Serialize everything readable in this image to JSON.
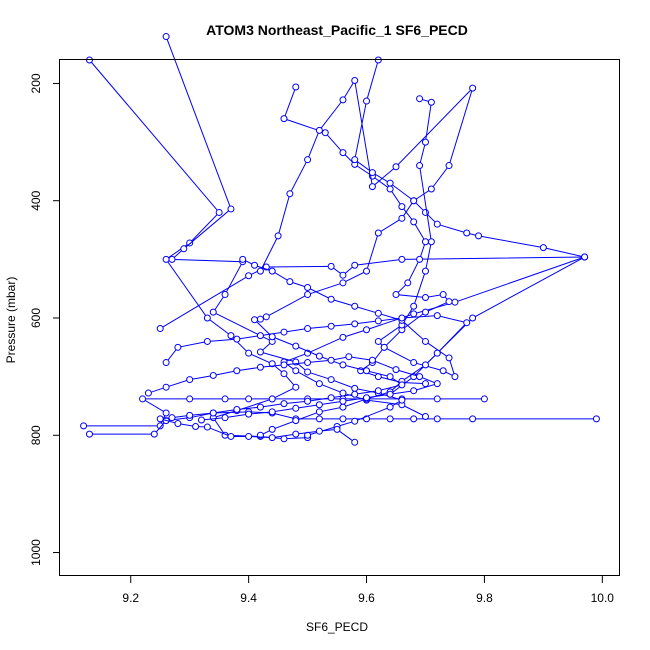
{
  "chart_data": {
    "type": "line",
    "title": "ATOM3 Northeast_Pacific_1 SF6_PECD",
    "xlabel": "SF6_PECD",
    "ylabel": "Pressure (mbar)",
    "xlim": [
      9.08,
      10.03
    ],
    "ylim": [
      1040,
      160
    ],
    "y_reversed": true,
    "x_ticks": [
      9.2,
      9.4,
      9.6,
      9.8,
      10.0
    ],
    "x_tick_labels": [
      "9.2",
      "9.4",
      "9.6",
      "9.8",
      "10.0"
    ],
    "y_ticks": [
      200,
      400,
      600,
      800,
      1000
    ],
    "y_tick_labels": [
      "200",
      "400",
      "600",
      "800",
      "1000"
    ],
    "series_color": "#0000ff",
    "grid": false,
    "legend": "none",
    "marker": "open-circle",
    "series": [
      {
        "values": [
          [
            9.12,
            784
          ],
          [
            9.25,
            784
          ],
          [
            9.26,
            762
          ],
          [
            9.22,
            738
          ],
          [
            9.3,
            738
          ],
          [
            9.36,
            738
          ],
          [
            9.4,
            738
          ],
          [
            9.44,
            738
          ],
          [
            9.5,
            738
          ],
          [
            9.56,
            738
          ],
          [
            9.6,
            738
          ],
          [
            9.66,
            738
          ],
          [
            9.72,
            738
          ],
          [
            9.8,
            738
          ]
        ]
      },
      {
        "values": [
          [
            9.13,
            798
          ],
          [
            9.24,
            798
          ],
          [
            9.26,
            775
          ],
          [
            9.3,
            770
          ],
          [
            9.34,
            762
          ],
          [
            9.4,
            760
          ],
          [
            9.44,
            762
          ],
          [
            9.48,
            772
          ],
          [
            9.52,
            772
          ],
          [
            9.56,
            772
          ],
          [
            9.6,
            772
          ],
          [
            9.64,
            772
          ],
          [
            9.68,
            772
          ],
          [
            9.72,
            772
          ],
          [
            9.78,
            772
          ],
          [
            9.99,
            772
          ]
        ]
      },
      {
        "values": [
          [
            9.25,
            618
          ],
          [
            9.4,
            528
          ],
          [
            9.43,
            513
          ],
          [
            9.54,
            512
          ],
          [
            9.56,
            527
          ],
          [
            9.58,
            510
          ],
          [
            9.66,
            500
          ],
          [
            9.97,
            496
          ],
          [
            9.75,
            573
          ],
          [
            9.68,
            593
          ],
          [
            9.6,
            620
          ],
          [
            9.56,
            633
          ],
          [
            9.5,
            660
          ],
          [
            9.46,
            675
          ],
          [
            9.48,
            690
          ],
          [
            9.52,
            712
          ],
          [
            9.56,
            728
          ],
          [
            9.6,
            740
          ],
          [
            9.66,
            748
          ],
          [
            9.7,
            768
          ]
        ]
      },
      {
        "values": [
          [
            9.13,
            160
          ],
          [
            9.35,
            420
          ],
          [
            9.3,
            472
          ],
          [
            9.26,
            500
          ],
          [
            9.33,
            600
          ],
          [
            9.37,
            630
          ],
          [
            9.4,
            660
          ],
          [
            9.44,
            678
          ],
          [
            9.46,
            695
          ],
          [
            9.48,
            718
          ],
          [
            9.44,
            738
          ],
          [
            9.38,
            758
          ],
          [
            9.34,
            770
          ],
          [
            9.36,
            800
          ],
          [
            9.42,
            802
          ],
          [
            9.46,
            806
          ],
          [
            9.5,
            804
          ]
        ]
      },
      {
        "values": [
          [
            9.26,
            120
          ],
          [
            9.37,
            414
          ],
          [
            9.29,
            482
          ],
          [
            9.27,
            500
          ],
          [
            9.39,
            504
          ],
          [
            9.36,
            560
          ],
          [
            9.34,
            590
          ],
          [
            9.44,
            640
          ],
          [
            9.42,
            658
          ],
          [
            9.48,
            675
          ],
          [
            9.5,
            692
          ],
          [
            9.54,
            705
          ],
          [
            9.58,
            720
          ],
          [
            9.62,
            728
          ],
          [
            9.66,
            740
          ],
          [
            9.64,
            752
          ],
          [
            9.58,
            776
          ],
          [
            9.55,
            785
          ],
          [
            9.5,
            800
          ]
        ]
      },
      {
        "values": [
          [
            9.48,
            206
          ],
          [
            9.46,
            260
          ],
          [
            9.53,
            284
          ],
          [
            9.56,
            318
          ],
          [
            9.58,
            338
          ],
          [
            9.61,
            358
          ],
          [
            9.64,
            380
          ],
          [
            9.66,
            410
          ],
          [
            9.68,
            436
          ],
          [
            9.7,
            470
          ],
          [
            9.69,
            500
          ],
          [
            9.67,
            540
          ],
          [
            9.65,
            560
          ],
          [
            9.7,
            565
          ],
          [
            9.73,
            560
          ],
          [
            9.74,
            572
          ],
          [
            9.7,
            590
          ],
          [
            9.66,
            620
          ],
          [
            9.63,
            650
          ],
          [
            9.61,
            676
          ],
          [
            9.59,
            690
          ],
          [
            9.62,
            700
          ],
          [
            9.66,
            710
          ],
          [
            9.7,
            712
          ]
        ]
      },
      {
        "values": [
          [
            9.42,
            602
          ],
          [
            9.43,
            598
          ],
          [
            9.5,
            560
          ],
          [
            9.56,
            540
          ],
          [
            9.6,
            520
          ],
          [
            9.62,
            455
          ],
          [
            9.66,
            430
          ],
          [
            9.68,
            400
          ],
          [
            9.71,
            380
          ],
          [
            9.74,
            340
          ],
          [
            9.78,
            208
          ],
          [
            9.65,
            342
          ],
          [
            9.61,
            376
          ],
          [
            9.58,
            195
          ],
          [
            9.56,
            228
          ],
          [
            9.52,
            280
          ],
          [
            9.5,
            330
          ],
          [
            9.47,
            388
          ],
          [
            9.45,
            460
          ],
          [
            9.42,
            520
          ]
        ]
      },
      {
        "values": [
          [
            9.62,
            160
          ],
          [
            9.6,
            230
          ],
          [
            9.58,
            330
          ],
          [
            9.61,
            352
          ],
          [
            9.64,
            370
          ],
          [
            9.68,
            400
          ],
          [
            9.7,
            420
          ],
          [
            9.72,
            440
          ],
          [
            9.77,
            455
          ],
          [
            9.79,
            460
          ],
          [
            9.9,
            480
          ],
          [
            9.97,
            496
          ],
          [
            9.78,
            600
          ],
          [
            9.72,
            660
          ],
          [
            9.68,
            700
          ],
          [
            9.64,
            730
          ]
        ]
      },
      {
        "values": [
          [
            9.69,
            226
          ],
          [
            9.71,
            232
          ],
          [
            9.7,
            300
          ],
          [
            9.69,
            340
          ],
          [
            9.71,
            470
          ],
          [
            9.7,
            520
          ],
          [
            9.68,
            580
          ],
          [
            9.66,
            612
          ],
          [
            9.62,
            640
          ],
          [
            9.63,
            650
          ],
          [
            9.68,
            676
          ],
          [
            9.73,
            690
          ],
          [
            9.75,
            700
          ],
          [
            9.74,
            668
          ],
          [
            9.7,
            640
          ],
          [
            9.66,
            604
          ],
          [
            9.62,
            592
          ],
          [
            9.58,
            580
          ],
          [
            9.54,
            568
          ],
          [
            9.5,
            548
          ],
          [
            9.47,
            538
          ],
          [
            9.44,
            520
          ],
          [
            9.41,
            510
          ],
          [
            9.39,
            500
          ]
        ]
      },
      {
        "values": [
          [
            9.26,
            676
          ],
          [
            9.28,
            650
          ],
          [
            9.33,
            640
          ],
          [
            9.38,
            636
          ],
          [
            9.42,
            630
          ],
          [
            9.46,
            624
          ],
          [
            9.5,
            618
          ],
          [
            9.54,
            614
          ],
          [
            9.58,
            610
          ],
          [
            9.62,
            605
          ],
          [
            9.66,
            600
          ],
          [
            9.72,
            596
          ],
          [
            9.77,
            608
          ],
          [
            9.72,
            660
          ],
          [
            9.7,
            680
          ],
          [
            9.66,
            708
          ],
          [
            9.64,
            726
          ],
          [
            9.6,
            738
          ],
          [
            9.56,
            752
          ],
          [
            9.52,
            760
          ],
          [
            9.48,
            775
          ],
          [
            9.44,
            790
          ],
          [
            9.42,
            800
          ]
        ]
      },
      {
        "values": [
          [
            9.41,
            603
          ],
          [
            9.44,
            632
          ],
          [
            9.48,
            648
          ],
          [
            9.52,
            665
          ],
          [
            9.56,
            680
          ],
          [
            9.6,
            690
          ],
          [
            9.64,
            700
          ],
          [
            9.66,
            714
          ],
          [
            9.62,
            724
          ],
          [
            9.58,
            730
          ],
          [
            9.54,
            736
          ],
          [
            9.5,
            742
          ],
          [
            9.46,
            746
          ],
          [
            9.42,
            752
          ],
          [
            9.38,
            756
          ],
          [
            9.34,
            762
          ],
          [
            9.3,
            766
          ],
          [
            9.27,
            770
          ],
          [
            9.25,
            772
          ],
          [
            9.28,
            780
          ],
          [
            9.31,
            785
          ],
          [
            9.33,
            786
          ],
          [
            9.37,
            802
          ],
          [
            9.4,
            802
          ],
          [
            9.44,
            804
          ],
          [
            9.48,
            798
          ],
          [
            9.52,
            793
          ],
          [
            9.55,
            790
          ],
          [
            9.58,
            812
          ]
        ]
      },
      {
        "values": [
          [
            9.23,
            728
          ],
          [
            9.26,
            718
          ],
          [
            9.3,
            705
          ],
          [
            9.34,
            698
          ],
          [
            9.38,
            690
          ],
          [
            9.42,
            684
          ],
          [
            9.46,
            680
          ],
          [
            9.5,
            676
          ],
          [
            9.54,
            672
          ],
          [
            9.57,
            666
          ],
          [
            9.61,
            672
          ],
          [
            9.65,
            688
          ],
          [
            9.69,
            700
          ],
          [
            9.72,
            712
          ],
          [
            9.68,
            724
          ],
          [
            9.64,
            730
          ],
          [
            9.6,
            736
          ],
          [
            9.56,
            742
          ],
          [
            9.52,
            748
          ],
          [
            9.48,
            754
          ],
          [
            9.44,
            760
          ],
          [
            9.4,
            764
          ],
          [
            9.36,
            770
          ],
          [
            9.32,
            774
          ]
        ]
      }
    ]
  }
}
